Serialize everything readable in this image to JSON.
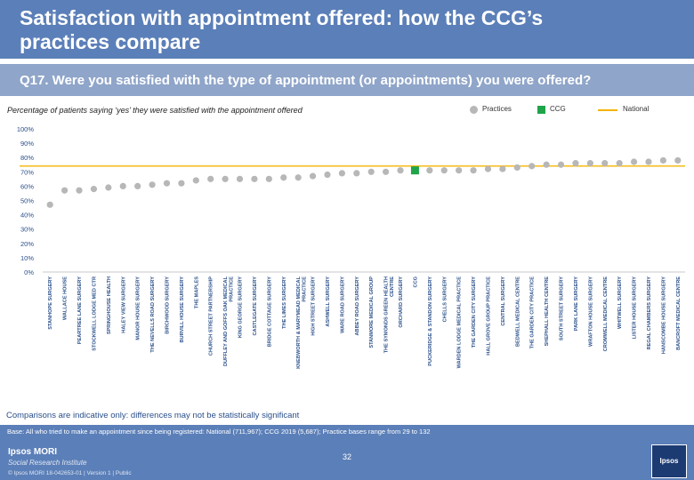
{
  "slide": {
    "title": "Satisfaction with appointment offered: how the CCG’s practices compare",
    "question": "Q17. Were you satisfied with the type of appointment (or appointments) you were offered?",
    "subtitle": "Percentage of patients saying ‘yes’ they were satisfied with the appointment offered",
    "comparisons_note": "Comparisons are indicative only: differences may not be statistically significant",
    "base": "Base: All who tried to make an appointment since being registered: National (711,967); CCG 2019 (5,687); Practice bases range from 29 to 132",
    "page_number": "32",
    "logo_line1": "Ipsos MORI",
    "logo_line2": "Social Research Institute",
    "copyright": "© Ipsos MORI     18-042653-01 | Version 1 | Public",
    "corner_logo": "Ipsos"
  },
  "legend": {
    "practices": "Practices",
    "ccg": "CCG",
    "national": "National"
  },
  "colors": {
    "header": "#5b7fb8",
    "practice_marker": "#b7b7b7",
    "ccg_marker": "#1fa44a",
    "national_line": "#f4b400",
    "axis_text": "#2a4f8a"
  },
  "chart_data": {
    "type": "scatter",
    "y_tick_labels": [
      "0%",
      "10%",
      "20%",
      "30%",
      "40%",
      "50%",
      "60%",
      "70%",
      "80%",
      "90%",
      "100%"
    ],
    "ylim": [
      0,
      100
    ],
    "national_value": 74,
    "ccg_index": 25,
    "categories": [
      "STANHOPE SURGERY",
      "WALLACE HOUSE",
      "PEARTREE LANE SURGERY",
      "STOCKWELL LODGE MED CTR",
      "SPRINGHOUSE HEALTH",
      "HALEY VIEW SURGERY",
      "MANOR HOUSE SURGERY",
      "THE NEVELLS ROAD SURGERY",
      "BIRCHWOOD SURGERY",
      "BURVILL HOUSE SURGERY",
      "THE MAPLES",
      "CHURCH STREET PARTNERSHIP",
      "DUFFLEY AND GOFFS OAK MEDICAL PRACTICE",
      "KING GEORGE SURGERY",
      "CASTLEGATE SURGERY",
      "BRIDGE COTTAGE SURGERY",
      "THE LIMES SURGERY",
      "KNEBWORTH & MARYMEAD MEDICAL PRACTICE",
      "HIGH STREET SURGERY",
      "ASHWELL SURGERY",
      "WARE ROAD SURGERY",
      "ABBEY ROAD SURGERY",
      "STANMORE MEDICAL GROUP",
      "THE SYMONDS GREEN HEALTH CENTRE",
      "ORCHARD SURGERY",
      "CCG",
      "PUCKERIDGE & STANDON SURGERY",
      "CHELLS SURGERY",
      "WARDEN LODGE MEDICAL PRACTICE",
      "THE GARDEN CITY SURGERY",
      "HALL GROVE GROUP PRACTICE",
      "CENTRAL SURGERY",
      "BEDWELL MEDICAL CENTRE",
      "THE GARDEN CITY PRACTICE",
      "SHEPHALL HEALTH CENTRE",
      "SOUTH STREET SURGERY",
      "PARK LANE SURGERY",
      "WRAFTON HOUSE SURGERY",
      "CROMWELL MEDICAL CENTRE",
      "WHITWELL SURGERY",
      "LISTER HOUSE SURGERY",
      "REGAL CHAMBERS SURGERY",
      "HANSCOMBE HOUSE SURGERY",
      "BANCROFT MEDICAL CENTRE"
    ],
    "values": [
      47,
      57,
      57,
      58,
      59,
      60,
      60,
      61,
      62,
      62,
      64,
      65,
      65,
      65,
      65,
      65,
      66,
      66,
      67,
      68,
      69,
      69,
      70,
      70,
      71,
      71,
      71,
      71,
      71,
      71,
      72,
      72,
      73,
      74,
      75,
      75,
      76,
      76,
      76,
      76,
      77,
      77,
      78,
      78
    ]
  }
}
